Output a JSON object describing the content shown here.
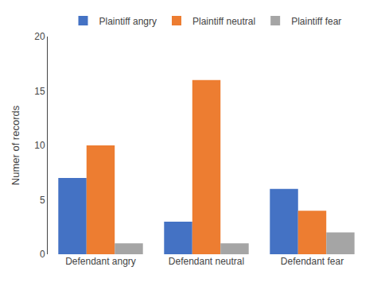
{
  "chart_data": {
    "type": "bar",
    "categories": [
      "Defendant angry",
      "Defendant neutral",
      "Defendant fear"
    ],
    "series": [
      {
        "name": "Plaintiff angry",
        "color": "#4472C4",
        "values": [
          7,
          3,
          6
        ]
      },
      {
        "name": "Plaintiff neutral",
        "color": "#ED7D31",
        "values": [
          10,
          16,
          4
        ]
      },
      {
        "name": "Plaintiff fear",
        "color": "#A5A5A5",
        "values": [
          1,
          1,
          2
        ]
      }
    ],
    "ylabel": "Numer of records",
    "ylim": [
      0,
      20
    ],
    "yticks": [
      0,
      5,
      10,
      15,
      20
    ],
    "grid": false,
    "legend": "top"
  }
}
